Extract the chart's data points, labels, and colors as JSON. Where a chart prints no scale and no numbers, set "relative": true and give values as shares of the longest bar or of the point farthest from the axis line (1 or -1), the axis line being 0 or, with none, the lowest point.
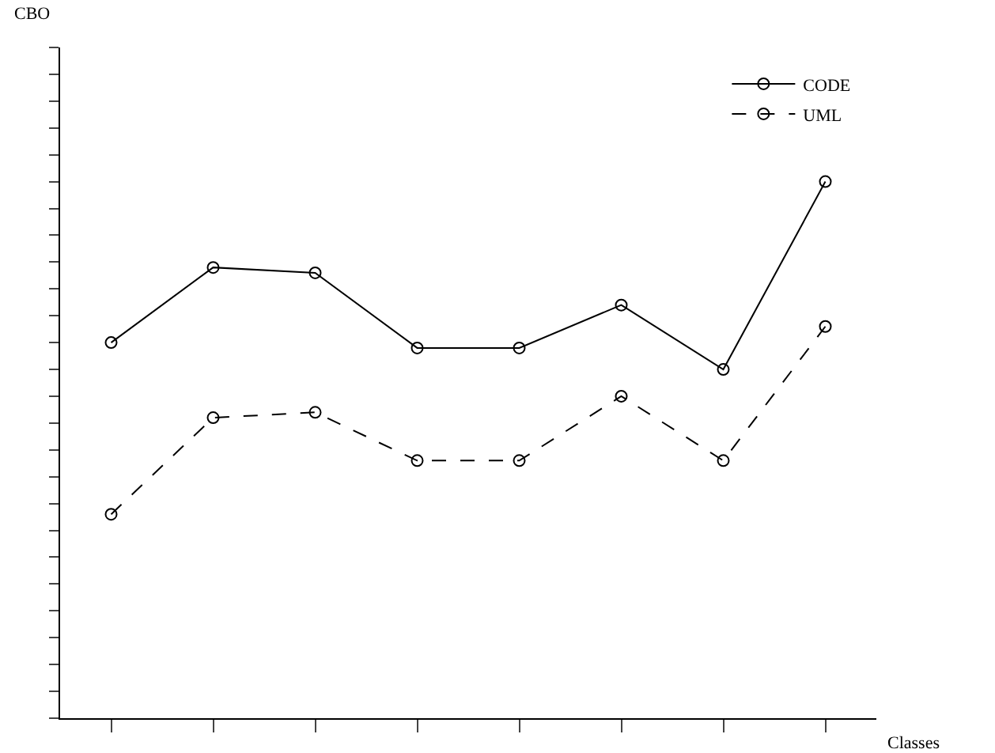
{
  "chart_data": {
    "type": "line",
    "relative": true,
    "annotations": [
      "CBO"
    ],
    "xlabel": "Classes",
    "categories": [
      null,
      null,
      null,
      null,
      null,
      null,
      null,
      null
    ],
    "series": [
      {
        "name": "CODE",
        "color": "#000000",
        "line_style": "solid",
        "values": [
          0.7,
          0.84,
          0.83,
          0.69,
          0.69,
          0.77,
          0.65,
          1.0
        ]
      },
      {
        "name": "UML",
        "color": "#000000",
        "line_style": "dashed",
        "values": [
          0.38,
          0.56,
          0.57,
          0.48,
          0.48,
          0.6,
          0.48,
          0.73
        ]
      }
    ],
    "marker": "circle",
    "legend": "top right"
  }
}
